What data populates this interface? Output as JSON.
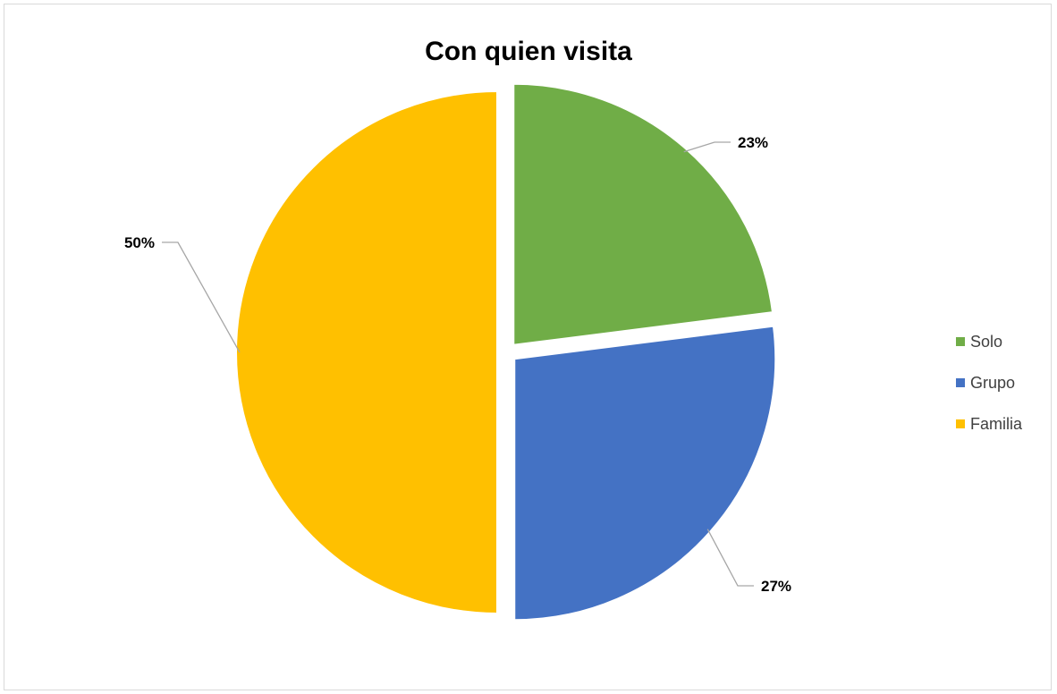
{
  "chart_data": {
    "type": "pie",
    "title": "Con quien visita",
    "categories": [
      "Solo",
      "Grupo",
      "Familia"
    ],
    "values": [
      23,
      27,
      50
    ],
    "data_labels": [
      "23%",
      "27%",
      "50%"
    ],
    "colors": [
      "#70AD47",
      "#4472C4",
      "#FFC000"
    ],
    "exploded": true,
    "start_angle": "12 o'clock",
    "direction": "clockwise",
    "legend": "right"
  }
}
